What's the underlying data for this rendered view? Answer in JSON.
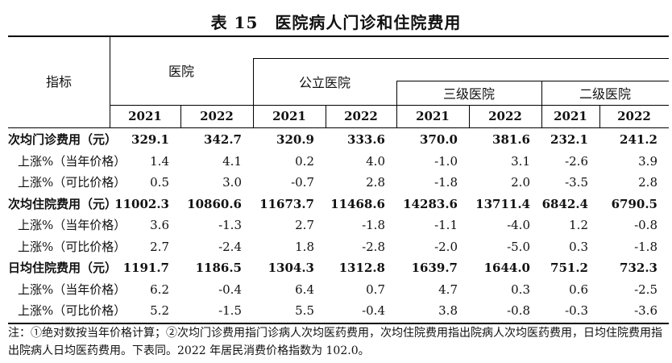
{
  "title": "表 15　医院病人门诊和住院费用",
  "header": {
    "indicator": "指标",
    "groups": [
      "医院",
      "公立医院",
      "三级医院",
      "二级医院"
    ],
    "years": [
      "2021",
      "2022",
      "2021",
      "2022",
      "2021",
      "2022",
      "2021",
      "2022"
    ]
  },
  "rows": [
    {
      "label": "次均门诊费用（元）",
      "bold": true,
      "values": [
        "329.1",
        "342.7",
        "320.9",
        "333.6",
        "370.0",
        "381.6",
        "232.1",
        "241.2"
      ]
    },
    {
      "label": "上涨%（当年价格）",
      "bold": false,
      "values": [
        "1.4",
        "4.1",
        "0.2",
        "4.0",
        "-1.0",
        "3.1",
        "-2.6",
        "3.9"
      ]
    },
    {
      "label": "上涨%（可比价格）",
      "bold": false,
      "values": [
        "0.5",
        "3.0",
        "-0.7",
        "2.8",
        "-1.8",
        "2.0",
        "-3.5",
        "2.8"
      ]
    },
    {
      "label": "次均住院费用（元）",
      "bold": true,
      "values": [
        "11002.3",
        "10860.6",
        "11673.7",
        "11468.6",
        "14283.6",
        "13711.4",
        "6842.4",
        "6790.5"
      ]
    },
    {
      "label": "上涨%（当年价格）",
      "bold": false,
      "values": [
        "3.6",
        "-1.3",
        "2.7",
        "-1.8",
        "-1.1",
        "-4.0",
        "1.2",
        "-0.8"
      ]
    },
    {
      "label": "上涨%（可比价格）",
      "bold": false,
      "values": [
        "2.7",
        "-2.4",
        "1.8",
        "-2.8",
        "-2.0",
        "-5.0",
        "0.3",
        "-1.8"
      ]
    },
    {
      "label": "日均住院费用（元）",
      "bold": true,
      "values": [
        "1191.7",
        "1186.5",
        "1304.3",
        "1312.8",
        "1639.7",
        "1644.0",
        "751.2",
        "732.3"
      ]
    },
    {
      "label": "上涨%（当年价格）",
      "bold": false,
      "values": [
        "6.2",
        "-0.4",
        "6.4",
        "0.7",
        "4.7",
        "0.3",
        "0.6",
        "-2.5"
      ]
    },
    {
      "label": "上涨%（可比价格）",
      "bold": false,
      "values": [
        "5.2",
        "-1.5",
        "5.5",
        "-0.4",
        "3.8",
        "-0.8",
        "-0.3",
        "-3.6"
      ]
    }
  ],
  "note": "注：①绝对数按当年价格计算；②次均门诊费用指门诊病人次均医药费用，次均住院费用指出院病人次均医药费用，日均住院费用指出院病人日均医药费用。下表同。2022 年居民消费价格指数为 102.0。"
}
